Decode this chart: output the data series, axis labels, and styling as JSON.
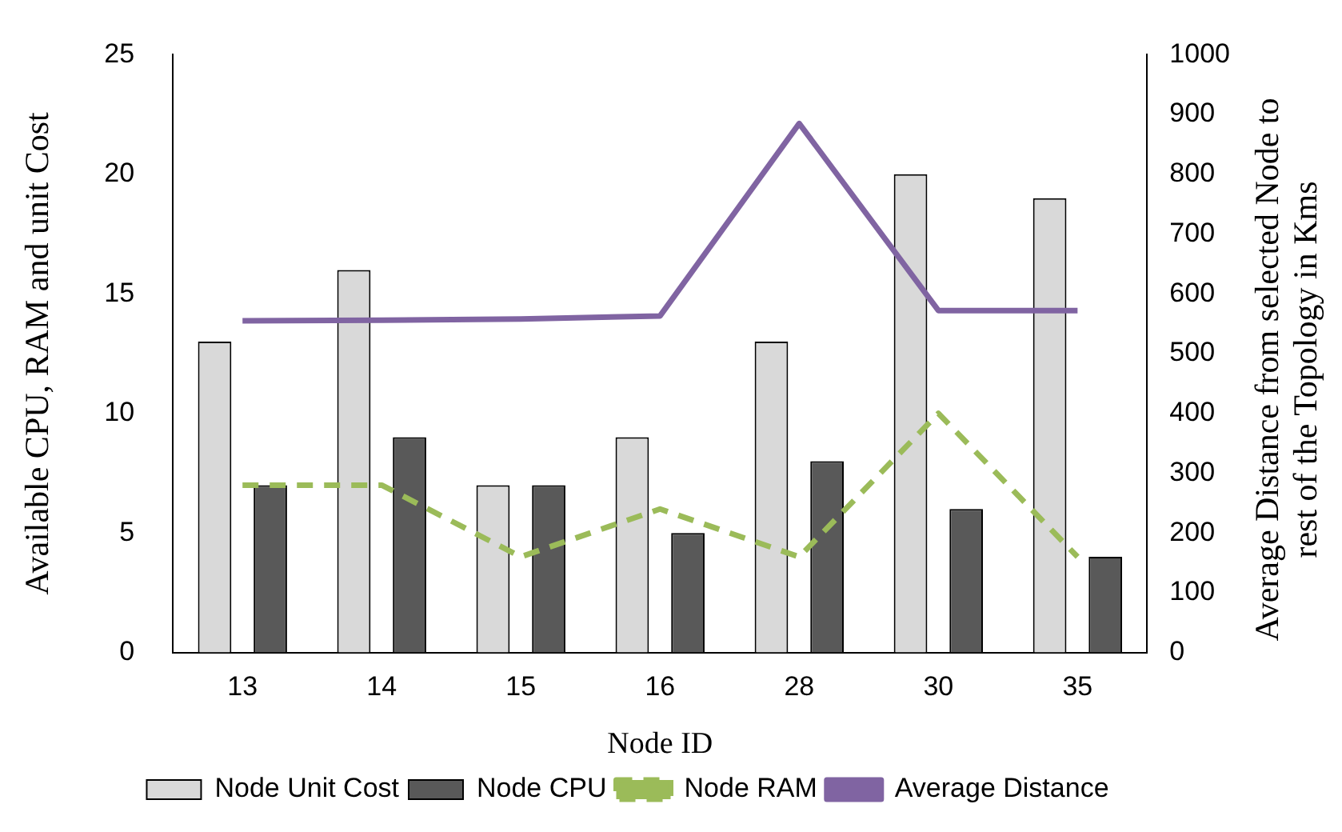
{
  "chart_data": {
    "type": "bar",
    "xlabel": "Node ID",
    "ylabel": "Available CPU, RAM and unit Cost",
    "y2label": "Average Distance from selected Node to rest of the Topology in Kms",
    "categories": [
      "13",
      "14",
      "15",
      "16",
      "28",
      "30",
      "35"
    ],
    "series": [
      {
        "name": "Node Unit Cost",
        "color": "#d9d9d9",
        "values": [
          13,
          16,
          7,
          9,
          13,
          20,
          19
        ]
      },
      {
        "name": "Node CPU",
        "color": "#595959",
        "values": [
          7,
          9,
          7,
          5,
          8,
          6,
          4
        ]
      },
      {
        "name": "Node RAM",
        "type": "line",
        "color": "#9bbb59",
        "line_style": "dashed",
        "values": [
          7,
          7,
          4,
          6,
          4,
          10,
          4
        ]
      },
      {
        "name": "Average Distance",
        "type": "line",
        "color": "#8064a2",
        "axis": "y2",
        "values": [
          555,
          556,
          558,
          563,
          885,
          572,
          572
        ]
      }
    ],
    "ylim": [
      0,
      25
    ],
    "yticks": [
      0,
      5,
      10,
      15,
      20,
      25
    ],
    "y2lim": [
      0,
      1000
    ],
    "y2ticks": [
      0,
      100,
      200,
      300,
      400,
      500,
      600,
      700,
      800,
      900,
      1000
    ],
    "grid": false,
    "legend": "bottom",
    "marker": "none"
  }
}
